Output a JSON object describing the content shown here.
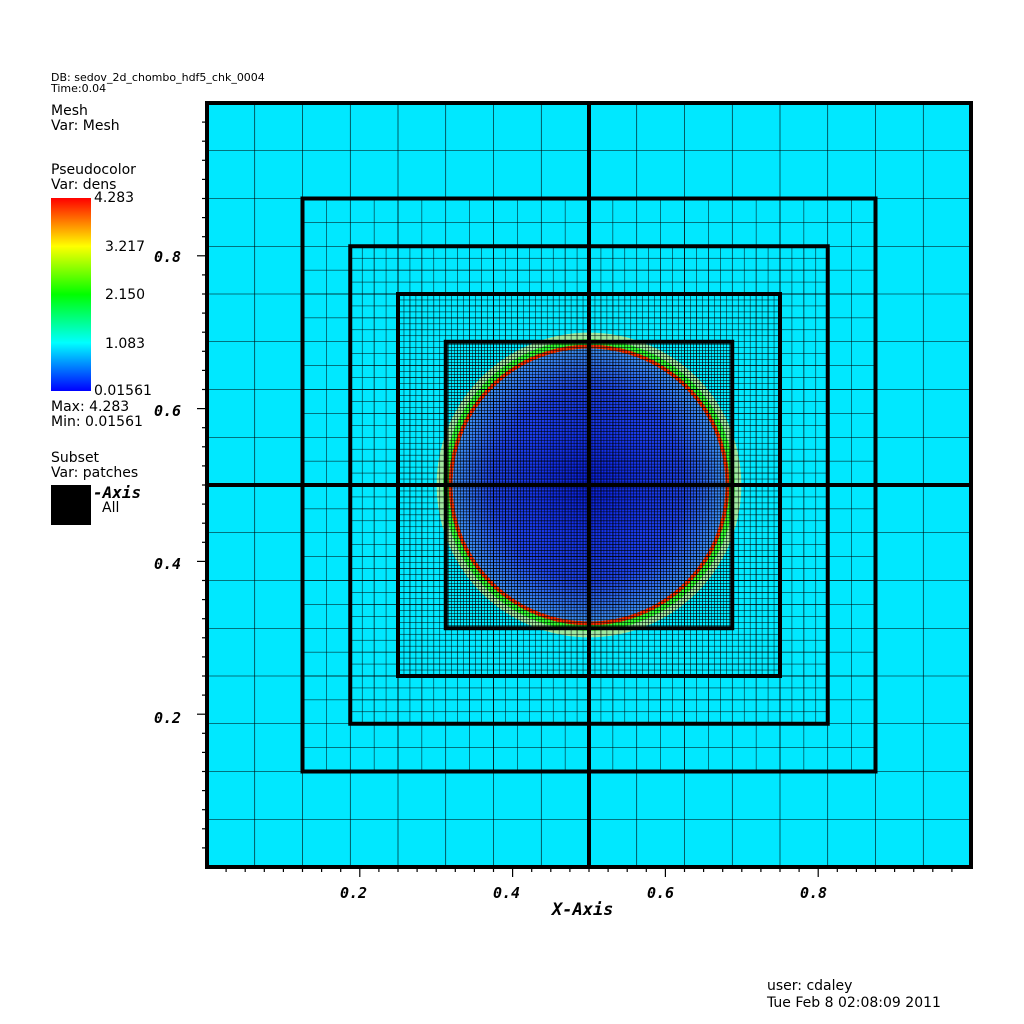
{
  "header": {
    "db": "DB: sedov_2d_chombo_hdf5_chk_0004",
    "time": "Time:0.04"
  },
  "legend": {
    "mesh_title": "Mesh",
    "mesh_var": "Var: Mesh",
    "pseudo_title": "Pseudocolor",
    "pseudo_var": "Var: dens",
    "colorbar_labels": [
      "4.283",
      "3.217",
      "2.150",
      "1.083",
      "0.01561"
    ],
    "max": "Max:  4.283",
    "min": "Min:  0.01561",
    "subset_title": "Subset",
    "subset_var": "Var: patches",
    "subset_axis": "-Axis",
    "subset_all": "All"
  },
  "footer": {
    "user": "user: cdaley",
    "date": "Tue Feb  8 02:08:09 2011"
  },
  "colors": {
    "background_cell": "#00e8ff",
    "grid_line": "#000000",
    "inner_blue": "#1b3cf0",
    "shock_ring": "#ff3000",
    "shock_green": "#33ff33"
  },
  "chart_data": {
    "type": "heatmap",
    "title": "",
    "xlabel": "X-Axis",
    "ylabel": "",
    "xlim": [
      0,
      1
    ],
    "ylim": [
      0,
      1
    ],
    "xticks": [
      0.2,
      0.4,
      0.6,
      0.8
    ],
    "yticks": [
      0.2,
      0.4,
      0.6,
      0.8
    ],
    "xtick_labels": [
      "0.2",
      "0.4",
      "0.6",
      "0.8"
    ],
    "ytick_labels": [
      "0.2",
      "0.4",
      "0.6",
      "0.8"
    ],
    "colorbar": {
      "var": "dens",
      "min": 0.01561,
      "max": 4.283,
      "ticks": [
        4.283,
        3.217,
        2.15,
        1.083,
        0.01561
      ]
    },
    "amr_levels": [
      {
        "level": 0,
        "extent": [
          [
            0,
            1
          ],
          [
            0,
            1
          ]
        ],
        "cell": 0.0625
      },
      {
        "level": 1,
        "extent": [
          [
            0.125,
            0.875
          ],
          [
            0.125,
            0.875
          ]
        ],
        "cell": 0.03125
      },
      {
        "level": 2,
        "extent": [
          [
            0.1875,
            0.8125
          ],
          [
            0.1875,
            0.8125
          ]
        ],
        "cell": 0.015625
      },
      {
        "level": 3,
        "extent": [
          [
            0.25,
            0.75
          ],
          [
            0.25,
            0.75
          ]
        ],
        "cell": 0.0078125
      },
      {
        "level": 4,
        "extent": [
          [
            0.3125,
            0.6875
          ],
          [
            0.3125,
            0.6875
          ]
        ],
        "cell": 0.00390625
      }
    ],
    "shock_radius": 0.185,
    "center": [
      0.5,
      0.5
    ]
  }
}
